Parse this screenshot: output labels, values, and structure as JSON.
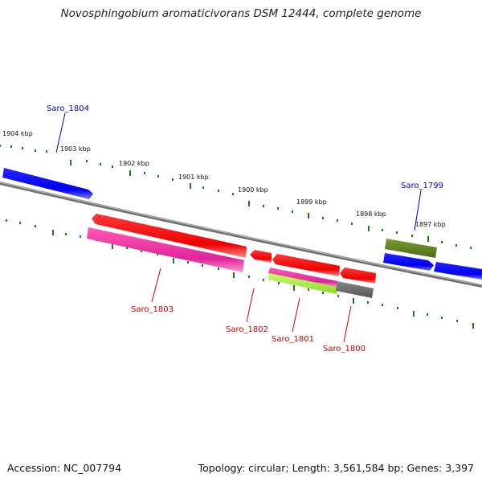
{
  "title": "Novosphingobium aromaticivorans DSM 12444, complete genome",
  "footer": {
    "accession": "Accession: NC_007794",
    "stats": "Topology: circular; Length: 3,561,584 bp; Genes: 3,397"
  },
  "scale_labels": [
    "1904 kbp",
    "1903 kbp",
    "1902 kbp",
    "1901 kbp",
    "1900 kbp",
    "1899 kbp",
    "1898 kbp",
    "1897 kbp"
  ],
  "genes": [
    {
      "name": "Saro_1804",
      "color": "#0000cc"
    },
    {
      "name": "Saro_1803",
      "color": "#cc0000"
    },
    {
      "name": "Saro_1802",
      "color": "#cc0000"
    },
    {
      "name": "Saro_1801",
      "color": "#cc0000"
    },
    {
      "name": "Saro_1800",
      "color": "#cc0000"
    },
    {
      "name": "Saro_1799",
      "color": "#0000cc"
    }
  ],
  "colors": {
    "forward_cds": "#0000ff",
    "reverse_cds": "#ff0000",
    "magenta_feature": "#ee2c9c",
    "green_feature": "#9aeb3a",
    "olive_feature": "#66882a",
    "grey_feature": "#666666",
    "backbone": "#808080",
    "tick": "#1a7a1a"
  }
}
